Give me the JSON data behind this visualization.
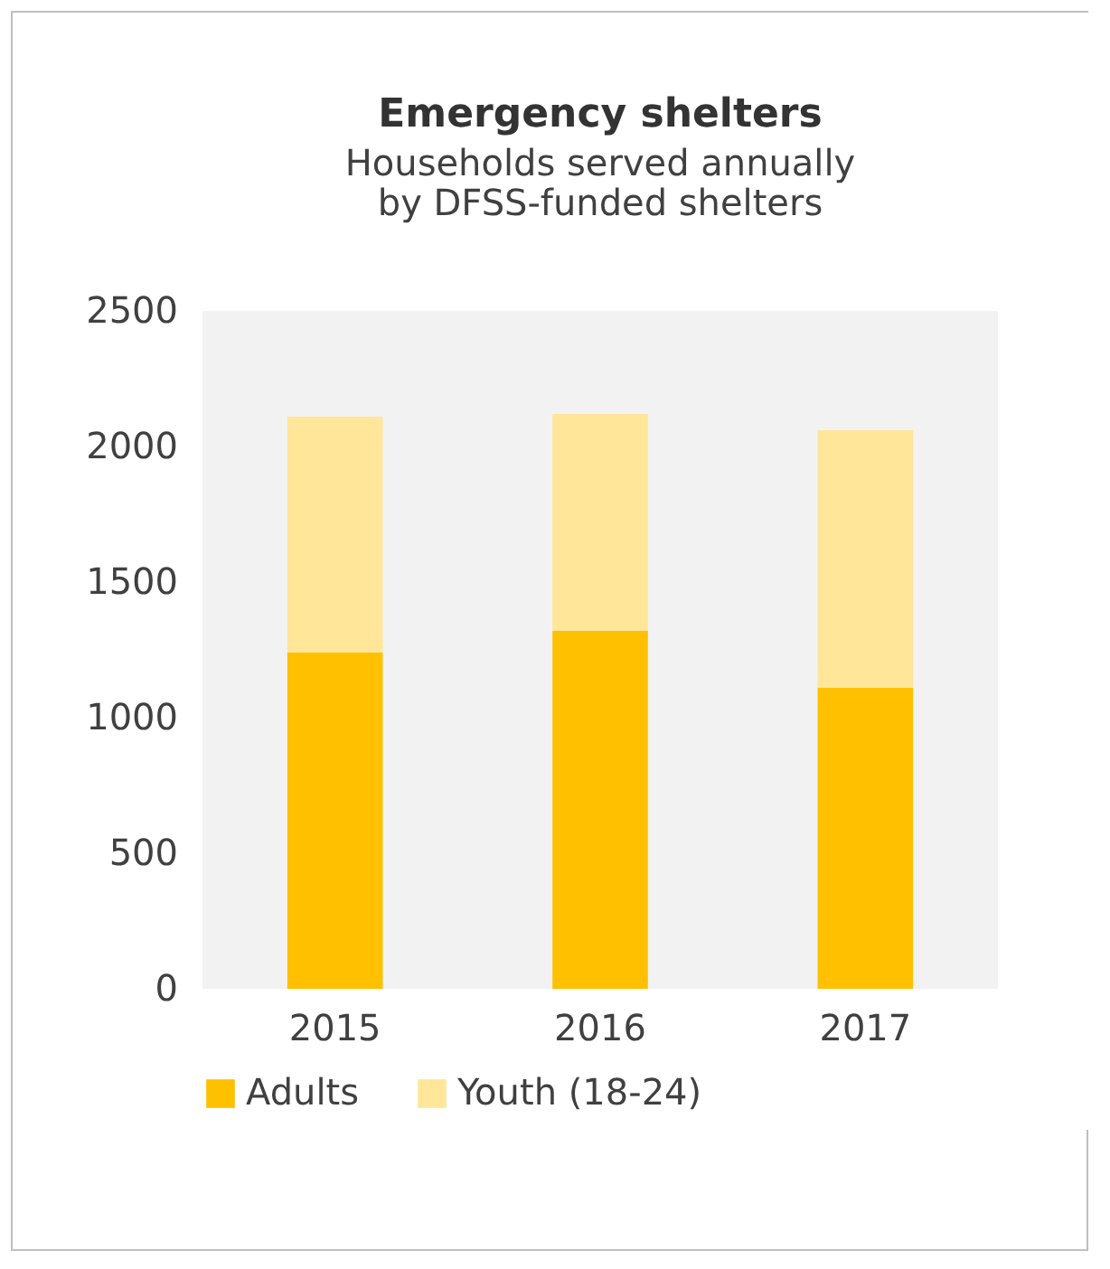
{
  "chart_data": {
    "type": "bar",
    "title": "Emergency shelters",
    "subtitle": "Households served annually\nby DFSS-funded shelters",
    "categories": [
      "2015",
      "2016",
      "2017"
    ],
    "stacked": true,
    "series": [
      {
        "name": "Adults",
        "color": "#ffc000",
        "values": [
          1240,
          1320,
          1110
        ]
      },
      {
        "name": "Youth (18-24)",
        "color": "#ffe699",
        "values": [
          870,
          800,
          950
        ]
      }
    ],
    "ylim": [
      0,
      2500
    ],
    "yticks": [
      0,
      500,
      1000,
      1500,
      2000,
      2500
    ],
    "grid": false,
    "legend": "bottom"
  }
}
